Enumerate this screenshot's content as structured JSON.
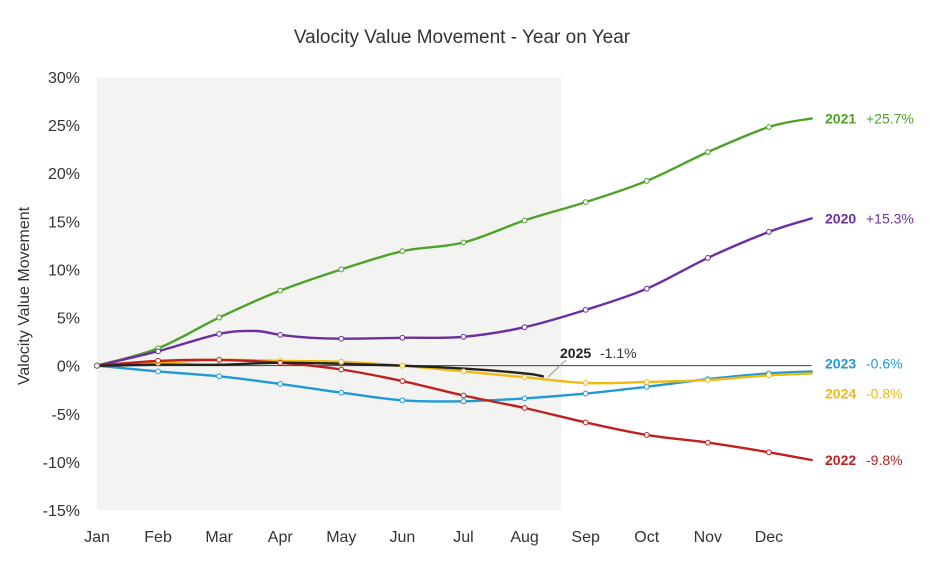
{
  "chart_data": {
    "type": "line",
    "title": "Valocity Value Movement - Year on Year",
    "xlabel": "",
    "ylabel": "Valocity Value Movement",
    "x_ticks": [
      "Jan",
      "Feb",
      "Mar",
      "Apr",
      "May",
      "Jun",
      "Jul",
      "Aug",
      "Sep",
      "Oct",
      "Nov",
      "Dec"
    ],
    "y_ticks": [
      "30%",
      "25%",
      "20%",
      "15%",
      "10%",
      "5%",
      "0%",
      "-5%",
      "-10%",
      "-15%"
    ],
    "ylim": [
      -15,
      30
    ],
    "xlim": [
      0,
      12
    ],
    "y_unit": "%",
    "shaded_region_x": [
      0,
      7.6
    ],
    "shaded_color": "#f3f3f1",
    "zero_line_color": "#2e4a2e",
    "grid": false,
    "series": [
      {
        "name": "2021",
        "end_label": "+25.7%",
        "color": "#4ea22c",
        "x": [
          0,
          1,
          2,
          3,
          4,
          5,
          6,
          7,
          8,
          9,
          10,
          11,
          11.7
        ],
        "y": [
          0,
          1.8,
          5.0,
          7.8,
          10.0,
          11.9,
          12.8,
          15.1,
          17.0,
          19.2,
          22.2,
          24.8,
          25.7
        ]
      },
      {
        "name": "2020",
        "end_label": "+15.3%",
        "color": "#6b2fa0",
        "x": [
          0,
          1,
          2,
          2.6,
          3,
          3.5,
          4,
          5,
          6,
          7,
          8,
          9,
          10,
          11,
          11.7
        ],
        "y": [
          0,
          1.5,
          3.3,
          3.6,
          3.2,
          2.9,
          2.8,
          2.9,
          3.0,
          4.0,
          5.8,
          8.0,
          11.2,
          13.9,
          15.3
        ]
      },
      {
        "name": "2023",
        "end_label": "-0.6%",
        "color": "#1f9ad6",
        "x": [
          0,
          1,
          2,
          3,
          4,
          5,
          6,
          7,
          8,
          9,
          10,
          11,
          11.7
        ],
        "y": [
          0,
          -0.6,
          -1.1,
          -1.9,
          -2.8,
          -3.6,
          -3.7,
          -3.4,
          -2.9,
          -2.2,
          -1.4,
          -0.8,
          -0.6
        ]
      },
      {
        "name": "2024",
        "end_label": "-0.8%",
        "color": "#f2b90f",
        "x": [
          0,
          1,
          2,
          3,
          4,
          5,
          6,
          7,
          8,
          9,
          10,
          11,
          11.7
        ],
        "y": [
          0,
          0.3,
          0.6,
          0.5,
          0.4,
          0.0,
          -0.6,
          -1.2,
          -1.8,
          -1.7,
          -1.5,
          -1.0,
          -0.8
        ]
      },
      {
        "name": "2022",
        "end_label": "-9.8%",
        "color": "#c0201f",
        "x": [
          0,
          1,
          2,
          3,
          4,
          5,
          6,
          7,
          8,
          9,
          10,
          11,
          11.7
        ],
        "y": [
          0,
          0.5,
          0.6,
          0.3,
          -0.4,
          -1.6,
          -3.1,
          -4.4,
          -5.9,
          -7.2,
          -8.0,
          -9.0,
          -9.8
        ]
      },
      {
        "name": "2025",
        "end_label": "-1.1%",
        "color": "#222222",
        "x": [
          0,
          1,
          2,
          3,
          4,
          5,
          6,
          7,
          7.3
        ],
        "y": [
          0,
          0.1,
          0.1,
          0.3,
          0.2,
          0.0,
          -0.3,
          -0.8,
          -1.1
        ]
      }
    ]
  }
}
